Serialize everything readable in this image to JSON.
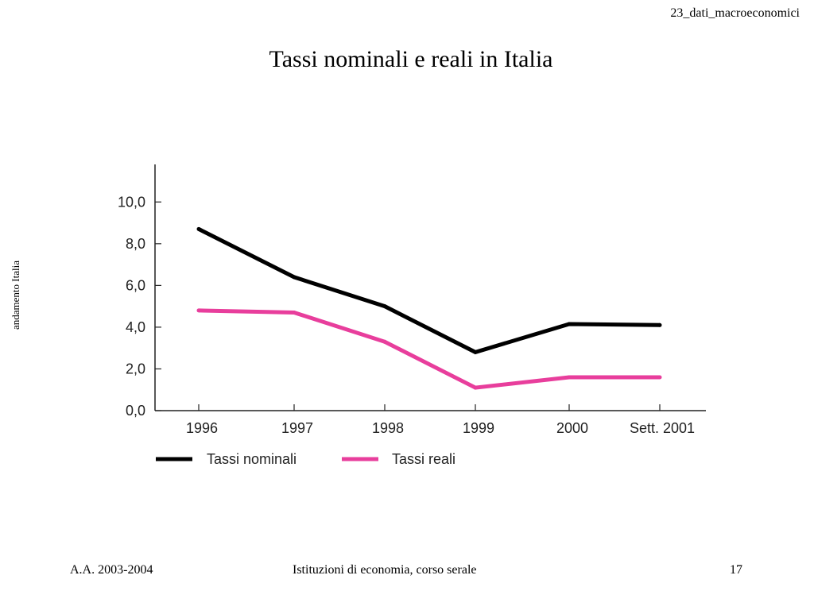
{
  "slide": {
    "header": "23_dati_macroeconomici",
    "title": "Tassi nominali e reali in Italia",
    "side_label": "andamento Italia",
    "footer_left": "A.A. 2003-2004",
    "footer_center": "Istituzioni di economia, corso serale",
    "page_number": "17"
  },
  "chart_data": {
    "type": "line",
    "title": "",
    "xlabel": "",
    "ylabel": "",
    "categories": [
      "1996",
      "1997",
      "1998",
      "1999",
      "2000",
      "Sett.  2001"
    ],
    "ylim": [
      0,
      11.8
    ],
    "y_ticks": [
      "0,0",
      "2,0",
      "4,0",
      "6,0",
      "8,0",
      "10,0"
    ],
    "grid": false,
    "legend_position": "bottom",
    "series": [
      {
        "name": "Tassi nominali",
        "color": "#000000",
        "values": [
          8.7,
          6.4,
          5.0,
          2.8,
          4.15,
          4.1
        ]
      },
      {
        "name": "Tassi reali",
        "color": "#e83e9c",
        "values": [
          4.8,
          4.7,
          3.3,
          1.1,
          1.6,
          1.6
        ]
      }
    ]
  }
}
